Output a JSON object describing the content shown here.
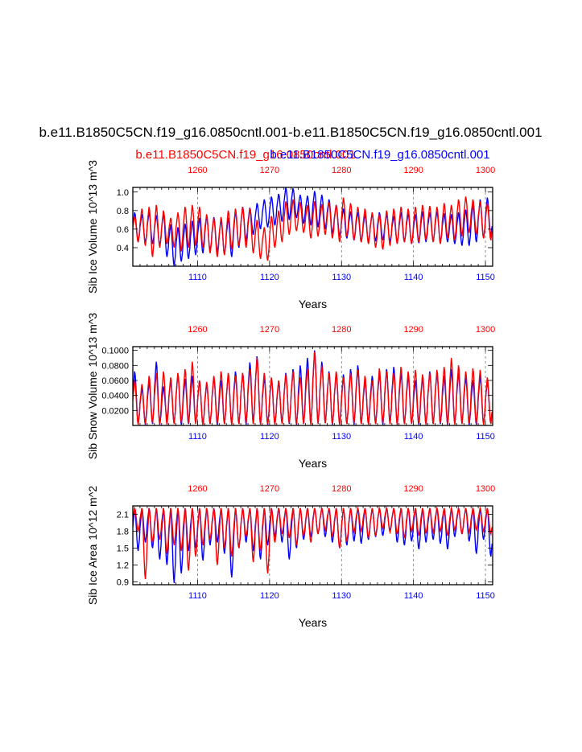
{
  "page": {
    "main_title": "b.e11.B1850C5CN.f19_g16.0850cntl.001-b.e11.B1850C5CN.f19_g16.0850cntl.001",
    "legend_red": "b.e11.B1850C5CN.f19_g16.0850cntl.001",
    "legend_blue": "b.e11.B1850C5CN.f19_g16.0850cntl.001",
    "colors": {
      "red": "#ff0000",
      "blue": "#0000ff",
      "axis": "#000000",
      "grid": "#777777"
    }
  },
  "chart_data": [
    {
      "type": "line",
      "title": "",
      "ylabel": "Sib Ice Volume",
      "yunit": "10^13 m^3",
      "xlabel": "Years",
      "x_bottom": {
        "label": "Years",
        "range": [
          1101,
          1151
        ],
        "ticks": [
          "1110",
          "1120",
          "1130",
          "1140",
          "1150"
        ],
        "color": "blue"
      },
      "x_top": {
        "range": [
          1251,
          1301
        ],
        "ticks": [
          "1260",
          "1270",
          "1280",
          "1290",
          "1300"
        ],
        "color": "red"
      },
      "ylim": [
        0.2,
        1.05
      ],
      "yticks": [
        "0.4",
        "0.6",
        "0.8",
        "1.0"
      ],
      "series": [
        {
          "name": "b.e11.B1850C5CN.f19_g16.0850cntl.001 (1101-1151)",
          "color": "blue",
          "annual_max": [
            0.78,
            0.76,
            0.78,
            0.75,
            0.77,
            0.65,
            0.62,
            0.66,
            0.69,
            0.72,
            0.74,
            0.73,
            0.7,
            0.72,
            0.8,
            0.84,
            0.83,
            0.88,
            0.92,
            0.95,
            0.98,
            1.05,
            1.04,
            0.97,
            0.96,
            1.01,
            0.97,
            0.92,
            0.86,
            0.82,
            0.79,
            0.78,
            0.76,
            0.77,
            0.78,
            0.76,
            0.74,
            0.78,
            0.77,
            0.76,
            0.79,
            0.78,
            0.79,
            0.77,
            0.76,
            0.78,
            0.81,
            0.87,
            0.92,
            0.94
          ],
          "annual_min": [
            0.46,
            0.45,
            0.44,
            0.42,
            0.3,
            0.2,
            0.25,
            0.28,
            0.32,
            0.34,
            0.36,
            0.35,
            0.33,
            0.3,
            0.4,
            0.47,
            0.54,
            0.6,
            0.62,
            0.64,
            0.68,
            0.7,
            0.72,
            0.66,
            0.64,
            0.62,
            0.6,
            0.55,
            0.52,
            0.5,
            0.48,
            0.46,
            0.46,
            0.47,
            0.48,
            0.46,
            0.45,
            0.46,
            0.44,
            0.45,
            0.46,
            0.47,
            0.46,
            0.46,
            0.44,
            0.42,
            0.42,
            0.46,
            0.5,
            0.52
          ]
        },
        {
          "name": "b.e11.B1850C5CN.f19_g16.0850cntl.001 (1251-1301)",
          "color": "red",
          "annual_max": [
            0.74,
            0.82,
            0.84,
            0.86,
            0.8,
            0.72,
            0.78,
            0.84,
            0.86,
            0.84,
            0.76,
            0.72,
            0.73,
            0.8,
            0.82,
            0.84,
            0.82,
            0.7,
            0.62,
            0.74,
            0.8,
            0.9,
            0.92,
            0.89,
            0.86,
            0.9,
            0.87,
            0.89,
            0.86,
            0.94,
            0.88,
            0.84,
            0.82,
            0.78,
            0.76,
            0.8,
            0.82,
            0.84,
            0.82,
            0.84,
            0.86,
            0.85,
            0.84,
            0.88,
            0.86,
            0.92,
            0.95,
            0.92,
            0.9,
            0.88
          ],
          "annual_min": [
            0.46,
            0.42,
            0.3,
            0.4,
            0.44,
            0.4,
            0.36,
            0.4,
            0.42,
            0.4,
            0.34,
            0.3,
            0.32,
            0.38,
            0.42,
            0.4,
            0.34,
            0.28,
            0.26,
            0.4,
            0.46,
            0.54,
            0.58,
            0.56,
            0.5,
            0.52,
            0.54,
            0.5,
            0.46,
            0.52,
            0.48,
            0.46,
            0.44,
            0.4,
            0.38,
            0.42,
            0.44,
            0.46,
            0.44,
            0.46,
            0.48,
            0.46,
            0.44,
            0.5,
            0.48,
            0.52,
            0.56,
            0.54,
            0.5,
            0.48
          ]
        }
      ]
    },
    {
      "type": "line",
      "title": "",
      "ylabel": "Sib Snow Volume",
      "yunit": "10^13 m^3",
      "xlabel": "Years",
      "x_bottom": {
        "label": "Years",
        "range": [
          1101,
          1151
        ],
        "ticks": [
          "1110",
          "1120",
          "1130",
          "1140",
          "1150"
        ],
        "color": "blue"
      },
      "x_top": {
        "range": [
          1251,
          1301
        ],
        "ticks": [
          "1260",
          "1270",
          "1280",
          "1290",
          "1300"
        ],
        "color": "red"
      },
      "ylim": [
        0.0,
        0.105
      ],
      "yticks": [
        "0.0200",
        "0.0400",
        "0.0600",
        "0.0800",
        "0.1000"
      ],
      "series": [
        {
          "name": "b.e11.B1850C5CN.f19_g16.0850cntl.001 (1101-1151)",
          "color": "blue",
          "annual_max": [
            0.072,
            0.05,
            0.058,
            0.085,
            0.052,
            0.06,
            0.068,
            0.062,
            0.066,
            0.06,
            0.055,
            0.064,
            0.06,
            0.068,
            0.072,
            0.07,
            0.084,
            0.092,
            0.064,
            0.062,
            0.058,
            0.07,
            0.075,
            0.08,
            0.09,
            0.1,
            0.085,
            0.072,
            0.07,
            0.068,
            0.075,
            0.08,
            0.06,
            0.066,
            0.07,
            0.075,
            0.078,
            0.07,
            0.066,
            0.06,
            0.064,
            0.072,
            0.07,
            0.066,
            0.075,
            0.07,
            0.064,
            0.06,
            0.066,
            0.06
          ],
          "annual_min": [
            0.002,
            0.001,
            0.002,
            0.001,
            0.008,
            0.002,
            0.001,
            0.002,
            0.003,
            0.001,
            0.002,
            0.001,
            0.002,
            0.003,
            0.002,
            0.001,
            0.002,
            0.002,
            0.001,
            0.002,
            0.003,
            0.002,
            0.001,
            0.002,
            0.001,
            0.002,
            0.003,
            0.001,
            0.002,
            0.002,
            0.001,
            0.002,
            0.003,
            0.002,
            0.001,
            0.002,
            0.001,
            0.002,
            0.003,
            0.001,
            0.001,
            0.002,
            0.002,
            0.001,
            0.002,
            0.003,
            0.001,
            0.001,
            0.002,
            0.003
          ]
        },
        {
          "name": "b.e11.B1850C5CN.f19_g16.0850cntl.001 (1251-1301)",
          "color": "red",
          "annual_max": [
            0.06,
            0.055,
            0.066,
            0.07,
            0.072,
            0.064,
            0.07,
            0.075,
            0.085,
            0.06,
            0.058,
            0.066,
            0.072,
            0.07,
            0.066,
            0.07,
            0.075,
            0.09,
            0.07,
            0.064,
            0.06,
            0.068,
            0.072,
            0.064,
            0.076,
            0.098,
            0.08,
            0.07,
            0.072,
            0.064,
            0.07,
            0.074,
            0.066,
            0.06,
            0.076,
            0.072,
            0.07,
            0.078,
            0.072,
            0.074,
            0.068,
            0.07,
            0.074,
            0.078,
            0.09,
            0.08,
            0.072,
            0.076,
            0.074,
            0.064
          ],
          "annual_min": [
            0.001,
            0.002,
            0.003,
            0.002,
            0.001,
            0.002,
            0.004,
            0.003,
            0.002,
            0.001,
            0.002,
            0.003,
            0.002,
            0.001,
            0.002,
            0.003,
            0.002,
            0.001,
            0.002,
            0.001,
            0.002,
            0.003,
            0.002,
            0.002,
            0.001,
            0.002,
            0.003,
            0.002,
            0.001,
            0.002,
            0.003,
            0.002,
            0.001,
            0.002,
            0.003,
            0.002,
            0.001,
            0.002,
            0.002,
            0.003,
            0.001,
            0.002,
            0.003,
            0.002,
            0.001,
            0.002,
            0.003,
            0.002,
            0.001,
            0.002
          ]
        }
      ]
    },
    {
      "type": "line",
      "title": "",
      "ylabel": "Sib Ice Area",
      "yunit": "10^12 m^2",
      "xlabel": "Years",
      "x_bottom": {
        "label": "Years",
        "range": [
          1101,
          1151
        ],
        "ticks": [
          "1110",
          "1120",
          "1130",
          "1140",
          "1150"
        ],
        "color": "blue"
      },
      "x_top": {
        "range": [
          1251,
          1301
        ],
        "ticks": [
          "1260",
          "1270",
          "1280",
          "1290",
          "1300"
        ],
        "color": "red"
      },
      "ylim": [
        0.85,
        2.25
      ],
      "yticks": [
        "0.9",
        "1.2",
        "1.5",
        "1.8",
        "2.1"
      ],
      "series": [
        {
          "name": "b.e11.B1850C5CN.f19_g16.0850cntl.001 (1101-1151)",
          "color": "blue",
          "annual_max": [
            2.21,
            2.21,
            2.21,
            2.21,
            2.21,
            2.21,
            2.21,
            2.21,
            2.21,
            2.21,
            2.21,
            2.21,
            2.21,
            2.21,
            2.21,
            2.21,
            2.21,
            2.21,
            2.21,
            2.21,
            2.21,
            2.21,
            2.21,
            2.21,
            2.21,
            2.21,
            2.21,
            2.21,
            2.21,
            2.21,
            2.21,
            2.21,
            2.21,
            2.21,
            2.21,
            2.21,
            2.21,
            2.21,
            2.21,
            2.21,
            2.21,
            2.21,
            2.21,
            2.21,
            2.21,
            2.21,
            2.21,
            2.21,
            2.21,
            2.21
          ],
          "annual_min": [
            1.45,
            1.6,
            1.5,
            1.3,
            1.2,
            0.88,
            1.05,
            1.45,
            1.5,
            1.28,
            1.55,
            1.6,
            1.4,
            0.98,
            1.5,
            1.6,
            1.45,
            1.3,
            1.55,
            1.7,
            1.6,
            1.3,
            1.5,
            1.65,
            1.7,
            1.75,
            1.7,
            1.6,
            1.5,
            1.55,
            1.62,
            1.58,
            1.65,
            1.7,
            1.72,
            1.8,
            1.6,
            1.55,
            1.62,
            1.48,
            1.6,
            1.65,
            1.58,
            1.48,
            1.7,
            1.75,
            1.62,
            1.4,
            1.65,
            1.35
          ]
        },
        {
          "name": "b.e11.B1850C5CN.f19_g16.0850cntl.001 (1251-1301)",
          "color": "red",
          "annual_max": [
            2.21,
            2.21,
            2.21,
            2.21,
            2.21,
            2.21,
            2.21,
            2.21,
            2.21,
            2.21,
            2.21,
            2.21,
            2.21,
            2.21,
            2.21,
            2.21,
            2.21,
            2.21,
            2.21,
            2.21,
            2.21,
            2.21,
            2.21,
            2.21,
            2.21,
            2.21,
            2.21,
            2.21,
            2.21,
            2.21,
            2.21,
            2.21,
            2.21,
            2.21,
            2.21,
            2.21,
            2.21,
            2.21,
            2.21,
            2.21,
            2.21,
            2.21,
            2.21,
            2.21,
            2.21,
            2.21,
            2.21,
            2.21,
            2.21,
            2.21
          ],
          "annual_min": [
            1.8,
            0.95,
            1.6,
            1.65,
            1.4,
            1.55,
            1.45,
            1.1,
            1.35,
            1.55,
            1.65,
            1.2,
            1.5,
            1.35,
            1.5,
            1.7,
            1.25,
            1.45,
            1.05,
            1.6,
            1.75,
            1.68,
            1.55,
            1.72,
            1.6,
            1.75,
            1.82,
            1.7,
            1.5,
            1.62,
            1.78,
            1.8,
            1.68,
            1.72,
            1.85,
            1.78,
            1.75,
            1.68,
            1.8,
            1.72,
            1.76,
            1.78,
            1.8,
            1.72,
            1.82,
            1.75,
            1.78,
            1.82,
            1.8,
            1.75
          ]
        }
      ]
    }
  ]
}
